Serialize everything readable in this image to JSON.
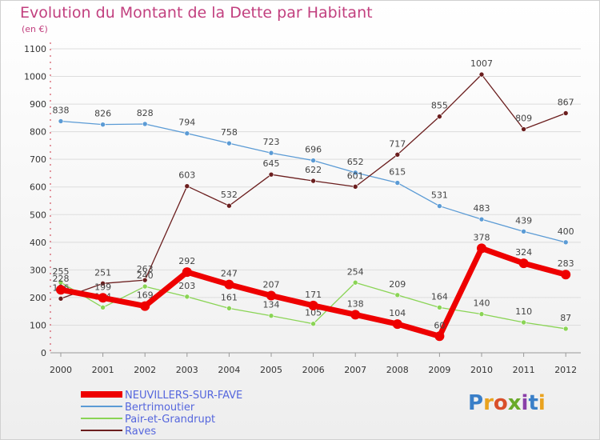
{
  "title": "Evolution du Montant de la Dette par Habitant",
  "subtitle": "(en €)",
  "logo": {
    "text": "Proxiti"
  },
  "chart_data": {
    "type": "line",
    "title": "Evolution du Montant de la Dette par Habitant",
    "unit": "(en €)",
    "xlabel": "",
    "ylabel": "",
    "x": [
      "2000",
      "2001",
      "2002",
      "2003",
      "2004",
      "2005",
      "2006",
      "2007",
      "2008",
      "2009",
      "2010",
      "2011",
      "2012"
    ],
    "ylim": [
      0,
      1100
    ],
    "yticks": [
      0,
      100,
      200,
      300,
      400,
      500,
      600,
      700,
      800,
      900,
      1000,
      1100
    ],
    "grid": true,
    "legend_position": "bottom-left",
    "series": [
      {
        "name": "NEUVILLERS-SUR-FAVE",
        "color": "#ee0000",
        "highlight": true,
        "values": [
          228,
          199,
          169,
          292,
          247,
          207,
          171,
          138,
          104,
          60,
          378,
          324,
          283
        ]
      },
      {
        "name": "Bertrimoutier",
        "color": "#5b9bd5",
        "highlight": false,
        "values": [
          838,
          826,
          828,
          794,
          758,
          723,
          696,
          652,
          615,
          531,
          483,
          439,
          400
        ]
      },
      {
        "name": "Pair-et-Grandrupt",
        "color": "#8ad455",
        "highlight": false,
        "values": [
          255,
          164,
          240,
          203,
          161,
          134,
          105,
          254,
          209,
          164,
          140,
          110,
          87
        ]
      },
      {
        "name": "Raves",
        "color": "#6b1e1e",
        "highlight": false,
        "values": [
          196,
          251,
          263,
          603,
          532,
          645,
          622,
          601,
          717,
          855,
          1007,
          809,
          867
        ]
      }
    ]
  }
}
